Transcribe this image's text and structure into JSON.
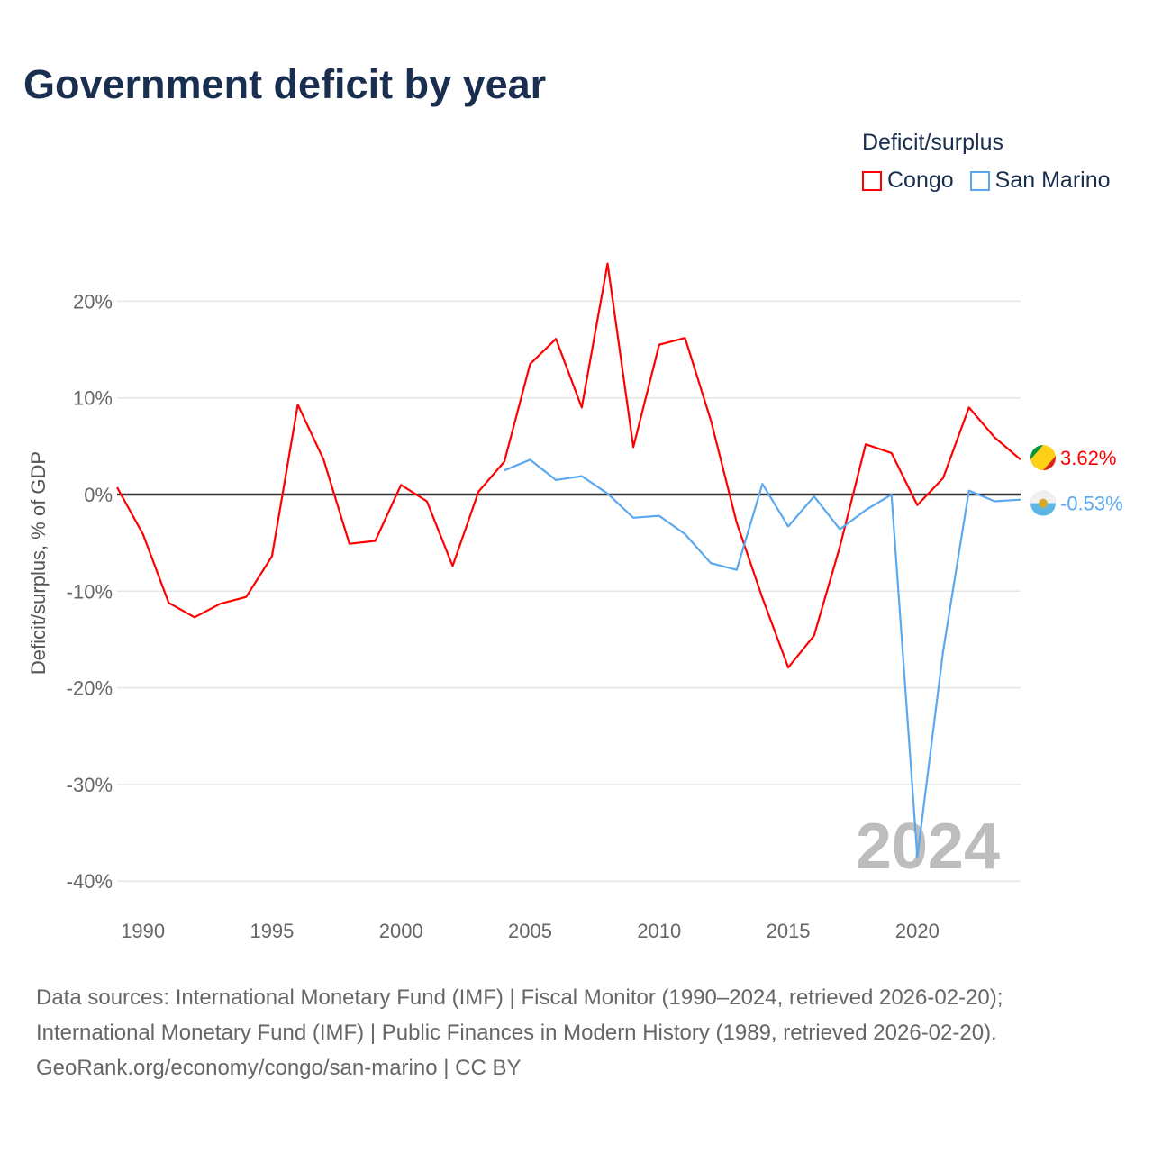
{
  "title": "Government deficit by year",
  "footer": {
    "line1": "Data sources: International Monetary Fund (IMF) | Fiscal Monitor (1990–2024, retrieved 2026-02-20);",
    "line2": "International Monetary Fund (IMF) | Public Finances in Modern History (1989, retrieved 2026-02-20).",
    "line3": "GeoRank.org/economy/congo/san-marino | CC BY"
  },
  "chart_data": {
    "type": "line",
    "title": "Government deficit by year",
    "xlabel": "",
    "ylabel": "Deficit/surplus, % of GDP",
    "legend_title": "Deficit/surplus",
    "legend_position": "top-right",
    "year_watermark": "2024",
    "xlim": [
      1989,
      2024
    ],
    "ylim": [
      -40,
      24
    ],
    "x_ticks": [
      "1990",
      "1995",
      "2000",
      "2005",
      "2010",
      "2015",
      "2020"
    ],
    "y_ticks": [
      {
        "v": 20,
        "label": "20%"
      },
      {
        "v": 10,
        "label": "10%"
      },
      {
        "v": 0,
        "label": "0%"
      },
      {
        "v": -10,
        "label": "-10%"
      },
      {
        "v": -20,
        "label": "-20%"
      },
      {
        "v": -30,
        "label": "-30%"
      },
      {
        "v": -40,
        "label": "-40%"
      }
    ],
    "series": [
      {
        "name": "Congo",
        "color": "#ff0000",
        "end_label": "3.62%",
        "start": 1989,
        "values": [
          0.75,
          -4.1,
          -11.2,
          -12.7,
          -11.3,
          -10.6,
          -6.4,
          9.3,
          3.6,
          -5.1,
          -4.8,
          1.0,
          -0.7,
          -7.4,
          0.3,
          3.4,
          13.5,
          16.1,
          9.0,
          23.9,
          4.9,
          15.5,
          16.2,
          7.7,
          -2.9,
          -10.7,
          -17.9,
          -14.6,
          -5.4,
          5.2,
          4.3,
          -1.1,
          1.7,
          9.0,
          5.9,
          3.62
        ]
      },
      {
        "name": "San Marino",
        "color": "#5ba8ee",
        "end_label": "-0.53%",
        "start": 2004,
        "values": [
          2.5,
          3.6,
          1.5,
          1.9,
          0.1,
          -2.4,
          -2.2,
          -4.1,
          -7.1,
          -7.8,
          1.1,
          -3.3,
          -0.2,
          -3.6,
          -1.6,
          0.0,
          -37.5,
          -16.2,
          0.4,
          -0.7,
          -0.53
        ]
      }
    ]
  }
}
